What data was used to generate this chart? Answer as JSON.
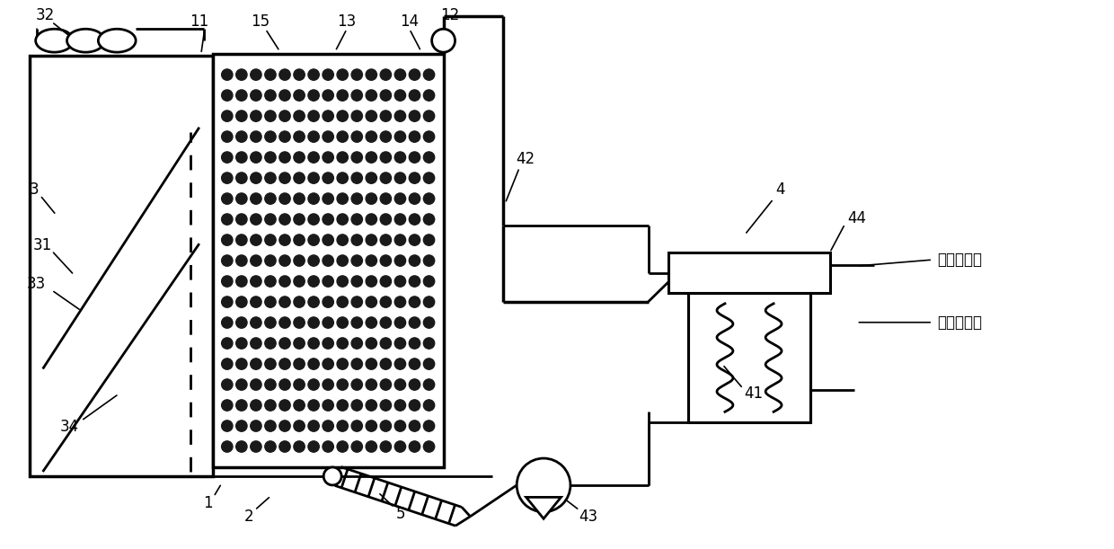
{
  "bg_color": "#ffffff",
  "line_color": "#000000",
  "dot_color": "#1a1a1a",
  "label_color": "#000000",
  "figure_size": [
    12.4,
    6.11
  ],
  "dpi": 100
}
